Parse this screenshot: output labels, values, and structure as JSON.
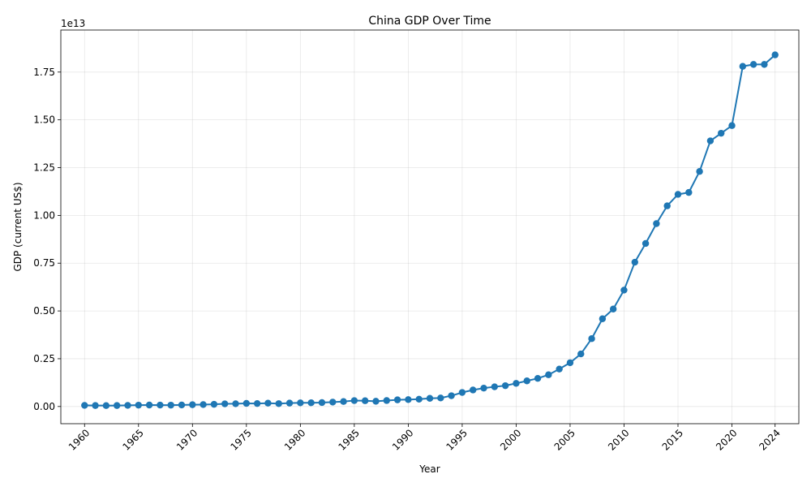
{
  "chart_data": {
    "type": "line",
    "title": "China GDP Over Time",
    "xlabel": "Year",
    "ylabel": "GDP (current US$)",
    "offset_text": "1e13",
    "xlim": [
      1957.8,
      2026.2
    ],
    "ylim": [
      -900000000000.0,
      19700000000000.0
    ],
    "x_ticks": [
      1960,
      1965,
      1970,
      1975,
      1980,
      1985,
      1990,
      1995,
      2000,
      2005,
      2010,
      2015,
      2020,
      2024
    ],
    "x_tick_labels": [
      "1960",
      "1965",
      "1970",
      "1975",
      "1980",
      "1985",
      "1990",
      "1995",
      "2000",
      "2005",
      "2010",
      "2015",
      "2020",
      "2024"
    ],
    "y_ticks": [
      0,
      2500000000000.0,
      5000000000000.0,
      7500000000000.0,
      10000000000000.0,
      12500000000000.0,
      15000000000000.0,
      17500000000000.0
    ],
    "y_tick_labels": [
      "0.00",
      "0.25",
      "0.50",
      "0.75",
      "1.00",
      "1.25",
      "1.50",
      "1.75"
    ],
    "grid": true,
    "line_color": "#1f77b4",
    "series": [
      {
        "x": [
          1960,
          1961,
          1962,
          1963,
          1964,
          1965,
          1966,
          1967,
          1968,
          1969,
          1970,
          1971,
          1972,
          1973,
          1974,
          1975,
          1976,
          1977,
          1978,
          1979,
          1980,
          1981,
          1982,
          1983,
          1984,
          1985,
          1986,
          1987,
          1988,
          1989,
          1990,
          1991,
          1992,
          1993,
          1994,
          1995,
          1996,
          1997,
          1998,
          1999,
          2000,
          2001,
          2002,
          2003,
          2004,
          2005,
          2006,
          2007,
          2008,
          2009,
          2010,
          2011,
          2012,
          2013,
          2014,
          2015,
          2016,
          2017,
          2018,
          2019,
          2020,
          2021,
          2022,
          2023,
          2024
        ],
        "values": [
          59700000000.0,
          50100000000.0,
          47200000000.0,
          50700000000.0,
          59700000000.0,
          70400000000.0,
          76700000000.0,
          72900000000.0,
          70700000000.0,
          79700000000.0,
          92600000000.0,
          99800000000.0,
          114000000000.0,
          139000000000.0,
          144000000000.0,
          163000000000.0,
          154000000000.0,
          175000000000.0,
          150000000000.0,
          178000000000.0,
          191000000000.0,
          196000000000.0,
          205000000000.0,
          230000000000.0,
          260000000000.0,
          309000000000.0,
          301000000000.0,
          273000000000.0,
          312000000000.0,
          348000000000.0,
          361000000000.0,
          383000000000.0,
          427000000000.0,
          445000000000.0,
          564000000000.0,
          734000000000.0,
          864000000000.0,
          962000000000.0,
          1030000000000.0,
          1090000000000.0,
          1210000000000.0,
          1340000000000.0,
          1470000000000.0,
          1660000000000.0,
          1960000000000.0,
          2290000000000.0,
          2750000000000.0,
          3550000000000.0,
          4590000000000.0,
          5100000000000.0,
          6090000000000.0,
          7550000000000.0,
          8530000000000.0,
          9570000000000.0,
          10500000000000.0,
          11100000000000.0,
          11200000000000.0,
          12300000000000.0,
          13900000000000.0,
          14300000000000.0,
          14700000000000.0,
          17800000000000.0,
          17900000000000.0,
          17900000000000.0,
          18400000000000.0
        ]
      }
    ]
  }
}
